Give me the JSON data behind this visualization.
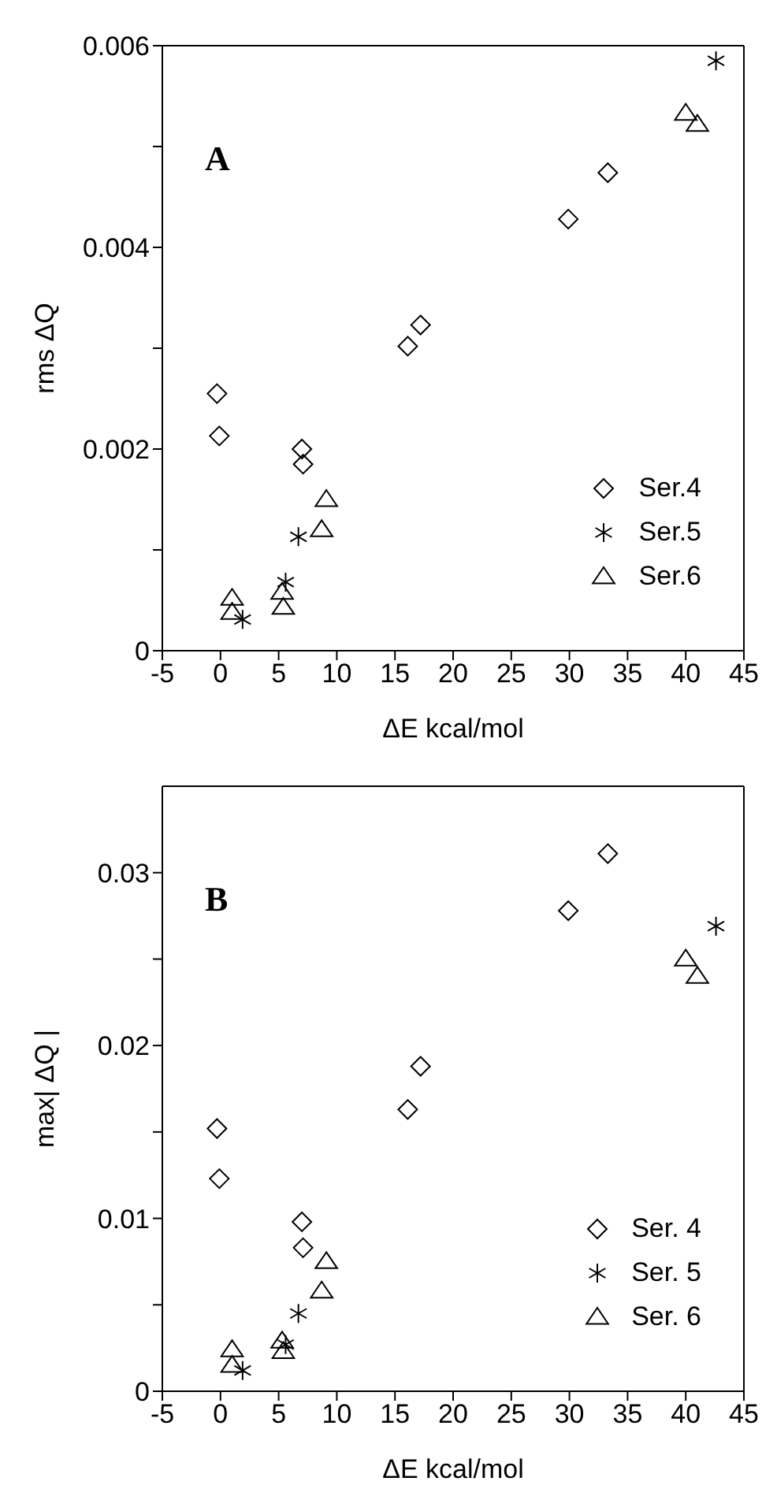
{
  "chart_data": [
    {
      "type": "scatter",
      "xlabel": "ΔE kcal/mol",
      "ylabel": "rms ΔQ",
      "annotations": [
        "A"
      ],
      "legend": "right",
      "grid": false,
      "xlim": [
        -5,
        45
      ],
      "xticks": [
        -5,
        0,
        5,
        10,
        15,
        20,
        25,
        30,
        35,
        40,
        45
      ],
      "ylim": [
        0,
        0.006
      ],
      "yticks": [
        0,
        {
          "value": 0.001,
          "label": null
        },
        0.002,
        {
          "value": 0.003,
          "label": null
        },
        0.004,
        {
          "value": 0.005,
          "label": null
        },
        0.006
      ],
      "series": [
        {
          "name": "Ser.4",
          "color": "#000000",
          "marker": "diamond",
          "x": [
            -0.3,
            -0.1,
            7,
            7.1,
            16.1,
            17.2,
            29.9,
            33.3
          ],
          "values": [
            0.00255,
            0.00213,
            0.002,
            0.00185,
            0.00302,
            0.00323,
            0.00428,
            0.00474
          ]
        },
        {
          "name": "Ser.5",
          "color": "#000000",
          "marker": "cross",
          "x": [
            1.9,
            5.6,
            6.7,
            42.6
          ],
          "values": [
            0.00031,
            0.00068,
            0.00113,
            0.00585
          ]
        },
        {
          "name": "Ser.6",
          "color": "#000000",
          "marker": "triangle",
          "x": [
            1,
            1,
            5.3,
            5.4,
            8.7,
            9.1,
            40,
            41
          ],
          "values": [
            0.00052,
            0.00038,
            0.00058,
            0.00043,
            0.0012,
            0.0015,
            0.00533,
            0.00522
          ]
        }
      ]
    },
    {
      "type": "scatter",
      "xlabel": "ΔE kcal/mol",
      "ylabel": "max| ΔQ |",
      "annotations": [
        "B"
      ],
      "legend": "right",
      "grid": false,
      "xlim": [
        -5,
        45
      ],
      "xticks": [
        -5,
        0,
        5,
        10,
        15,
        20,
        25,
        30,
        35,
        40,
        45
      ],
      "ylim": [
        0,
        0.035
      ],
      "yticks": [
        0,
        {
          "value": 0.005,
          "label": null
        },
        0.01,
        {
          "value": 0.015,
          "label": null
        },
        0.02,
        {
          "value": 0.025,
          "label": null
        },
        0.03
      ],
      "series": [
        {
          "name": "Ser. 4",
          "color": "#000000",
          "marker": "diamond",
          "x": [
            -0.3,
            -0.1,
            7,
            7.1,
            16.1,
            17.2,
            29.9,
            33.3
          ],
          "values": [
            0.0152,
            0.0123,
            0.0098,
            0.0083,
            0.0163,
            0.0188,
            0.0278,
            0.0311
          ]
        },
        {
          "name": "Ser. 5",
          "color": "#000000",
          "marker": "cross",
          "x": [
            1.9,
            5.6,
            6.7,
            42.6
          ],
          "values": [
            0.0012,
            0.0027,
            0.0045,
            0.0269
          ]
        },
        {
          "name": "Ser. 6",
          "color": "#000000",
          "marker": "triangle",
          "x": [
            1,
            1,
            5.3,
            5.4,
            8.7,
            9.1,
            40,
            41
          ],
          "values": [
            0.0024,
            0.0015,
            0.0029,
            0.0023,
            0.0058,
            0.0075,
            0.025,
            0.024
          ]
        }
      ]
    }
  ]
}
